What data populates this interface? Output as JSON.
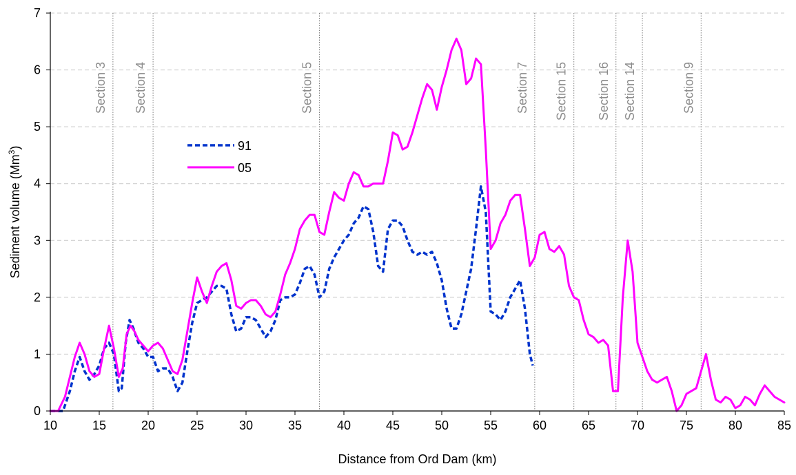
{
  "chart_data": {
    "type": "line",
    "title": "",
    "xlabel": "Distance from Ord Dam (km)",
    "ylabel_main": "Sediment volume (Mm",
    "ylabel_sup": "3",
    "ylabel_close": ")",
    "xlim": [
      10,
      85
    ],
    "ylim": [
      0,
      7
    ],
    "xticks": [
      10,
      15,
      20,
      25,
      30,
      35,
      40,
      45,
      50,
      55,
      60,
      65,
      70,
      75,
      80,
      85
    ],
    "yticks": [
      0,
      1,
      2,
      3,
      4,
      5,
      6,
      7
    ],
    "grid": "horizontal dashed",
    "legend_position": "upper-left inside plot",
    "sections": [
      {
        "label": "Section 3",
        "x": 16.4
      },
      {
        "label": "Section 4",
        "x": 20.5
      },
      {
        "label": "Section 5",
        "x": 37.5
      },
      {
        "label": "Section 7",
        "x": 59.5
      },
      {
        "label": "Section 15",
        "x": 63.5
      },
      {
        "label": "Section 16",
        "x": 67.8
      },
      {
        "label": "Section 14",
        "x": 70.5
      },
      {
        "label": "Section 9",
        "x": 76.5
      }
    ],
    "series": [
      {
        "name": "91",
        "color": "#0033cc",
        "style": "dashed",
        "x": [
          10,
          10.8,
          11.3,
          12,
          12.5,
          13,
          13.5,
          14,
          14.5,
          15,
          15.5,
          16,
          16.5,
          17,
          17.3,
          17.7,
          18.1,
          18.5,
          19,
          19.5,
          20,
          20.5,
          21,
          21.5,
          22,
          22.5,
          23,
          23.5,
          24,
          24.5,
          25,
          25.5,
          26,
          26.5,
          27,
          27.5,
          28,
          28.5,
          29,
          29.5,
          30,
          30.5,
          31,
          31.5,
          32,
          32.5,
          33,
          33.5,
          34,
          34.5,
          35,
          35.5,
          36,
          36.5,
          37,
          37.5,
          38,
          38.5,
          39,
          39.5,
          40,
          40.5,
          41,
          41.5,
          42,
          42.5,
          43,
          43.5,
          44,
          44.5,
          45,
          45.5,
          46,
          46.5,
          47,
          47.5,
          48,
          48.5,
          49,
          49.5,
          50,
          50.5,
          51,
          51.5,
          52,
          52.5,
          53,
          53.5,
          54,
          54.5,
          55,
          55.5,
          56,
          56.5,
          57,
          57.5,
          58,
          58.5,
          59,
          59.3
        ],
        "y": [
          0,
          0,
          0,
          0.35,
          0.7,
          0.95,
          0.7,
          0.55,
          0.65,
          0.8,
          1.1,
          1.2,
          1.0,
          0.35,
          0.4,
          1.2,
          1.6,
          1.45,
          1.2,
          1.1,
          0.95,
          0.95,
          0.7,
          0.75,
          0.75,
          0.6,
          0.35,
          0.5,
          1.05,
          1.55,
          1.9,
          1.95,
          2.0,
          2.1,
          2.2,
          2.2,
          2.15,
          1.7,
          1.4,
          1.45,
          1.65,
          1.65,
          1.6,
          1.45,
          1.3,
          1.4,
          1.6,
          1.95,
          2.0,
          2.0,
          2.05,
          2.25,
          2.5,
          2.55,
          2.4,
          2.0,
          2.1,
          2.5,
          2.7,
          2.85,
          3.0,
          3.1,
          3.3,
          3.4,
          3.6,
          3.55,
          3.15,
          2.55,
          2.45,
          3.2,
          3.35,
          3.35,
          3.25,
          3.0,
          2.8,
          2.75,
          2.8,
          2.75,
          2.8,
          2.6,
          2.3,
          1.8,
          1.45,
          1.45,
          1.7,
          2.1,
          2.5,
          3.2,
          3.95,
          3.5,
          1.75,
          1.7,
          1.6,
          1.75,
          2.0,
          2.15,
          2.3,
          1.8,
          1.0,
          0.8
        ]
      },
      {
        "name": "05",
        "color": "#ff00ff",
        "style": "solid",
        "x": [
          10,
          10.8,
          11.5,
          12,
          12.5,
          13,
          13.5,
          14,
          14.5,
          15,
          15.5,
          16,
          16.5,
          17,
          17.4,
          17.8,
          18.2,
          18.6,
          19,
          19.5,
          20,
          20.5,
          21,
          21.5,
          22,
          22.5,
          23,
          23.5,
          24,
          24.5,
          25,
          25.5,
          26,
          26.5,
          27,
          27.5,
          28,
          28.5,
          29,
          29.5,
          30,
          30.5,
          31,
          31.5,
          32,
          32.5,
          33,
          33.5,
          34,
          34.5,
          35,
          35.5,
          36,
          36.5,
          37,
          37.5,
          38,
          38.5,
          39,
          39.5,
          40,
          40.5,
          41,
          41.5,
          42,
          42.5,
          43,
          43.5,
          44,
          44.5,
          45,
          45.5,
          46,
          46.5,
          47,
          47.5,
          48,
          48.5,
          49,
          49.5,
          50,
          50.5,
          51,
          51.5,
          52,
          52.5,
          53,
          53.5,
          54,
          54.5,
          55,
          55.5,
          56,
          56.5,
          57,
          57.5,
          58,
          58.5,
          59,
          59.5,
          60,
          60.5,
          61,
          61.5,
          62,
          62.5,
          63,
          63.5,
          64,
          64.5,
          65,
          65.5,
          66,
          66.5,
          67,
          67.5,
          68,
          68.5,
          69,
          69.5,
          70,
          70.5,
          71,
          71.5,
          72,
          72.5,
          73,
          73.5,
          74,
          74.5,
          75,
          75.5,
          76,
          76.5,
          77,
          77.5,
          78,
          78.5,
          79,
          79.5,
          80,
          80.5,
          81,
          81.5,
          82,
          82.5,
          83,
          83.5,
          84,
          84.5,
          85
        ],
        "y": [
          0,
          0,
          0.25,
          0.6,
          0.95,
          1.2,
          1.0,
          0.7,
          0.6,
          0.65,
          1.1,
          1.5,
          1.1,
          0.6,
          0.75,
          1.35,
          1.5,
          1.4,
          1.25,
          1.15,
          1.05,
          1.15,
          1.2,
          1.1,
          0.9,
          0.7,
          0.65,
          0.9,
          1.4,
          1.9,
          2.35,
          2.1,
          1.9,
          2.2,
          2.45,
          2.55,
          2.6,
          2.3,
          1.85,
          1.8,
          1.9,
          1.95,
          1.95,
          1.85,
          1.7,
          1.65,
          1.75,
          2.05,
          2.4,
          2.6,
          2.85,
          3.2,
          3.35,
          3.45,
          3.45,
          3.15,
          3.1,
          3.5,
          3.85,
          3.75,
          3.7,
          4.0,
          4.2,
          4.15,
          3.95,
          3.95,
          4.0,
          4.0,
          4.0,
          4.4,
          4.9,
          4.85,
          4.6,
          4.65,
          4.9,
          5.2,
          5.5,
          5.75,
          5.65,
          5.3,
          5.7,
          6.0,
          6.35,
          6.55,
          6.35,
          5.75,
          5.85,
          6.2,
          6.1,
          4.6,
          2.85,
          3.0,
          3.3,
          3.45,
          3.7,
          3.8,
          3.8,
          3.2,
          2.55,
          2.7,
          3.1,
          3.15,
          2.85,
          2.8,
          2.9,
          2.75,
          2.2,
          2.0,
          1.95,
          1.6,
          1.35,
          1.3,
          1.2,
          1.25,
          1.15,
          0.35,
          0.35,
          2.0,
          3.0,
          2.45,
          1.2,
          0.95,
          0.7,
          0.55,
          0.5,
          0.55,
          0.6,
          0.35,
          0.0,
          0.1,
          0.3,
          0.35,
          0.4,
          0.7,
          1.0,
          0.55,
          0.2,
          0.15,
          0.25,
          0.2,
          0.05,
          0.1,
          0.25,
          0.2,
          0.1,
          0.3,
          0.45,
          0.35,
          0.25,
          0.2,
          0.15
        ]
      }
    ]
  }
}
